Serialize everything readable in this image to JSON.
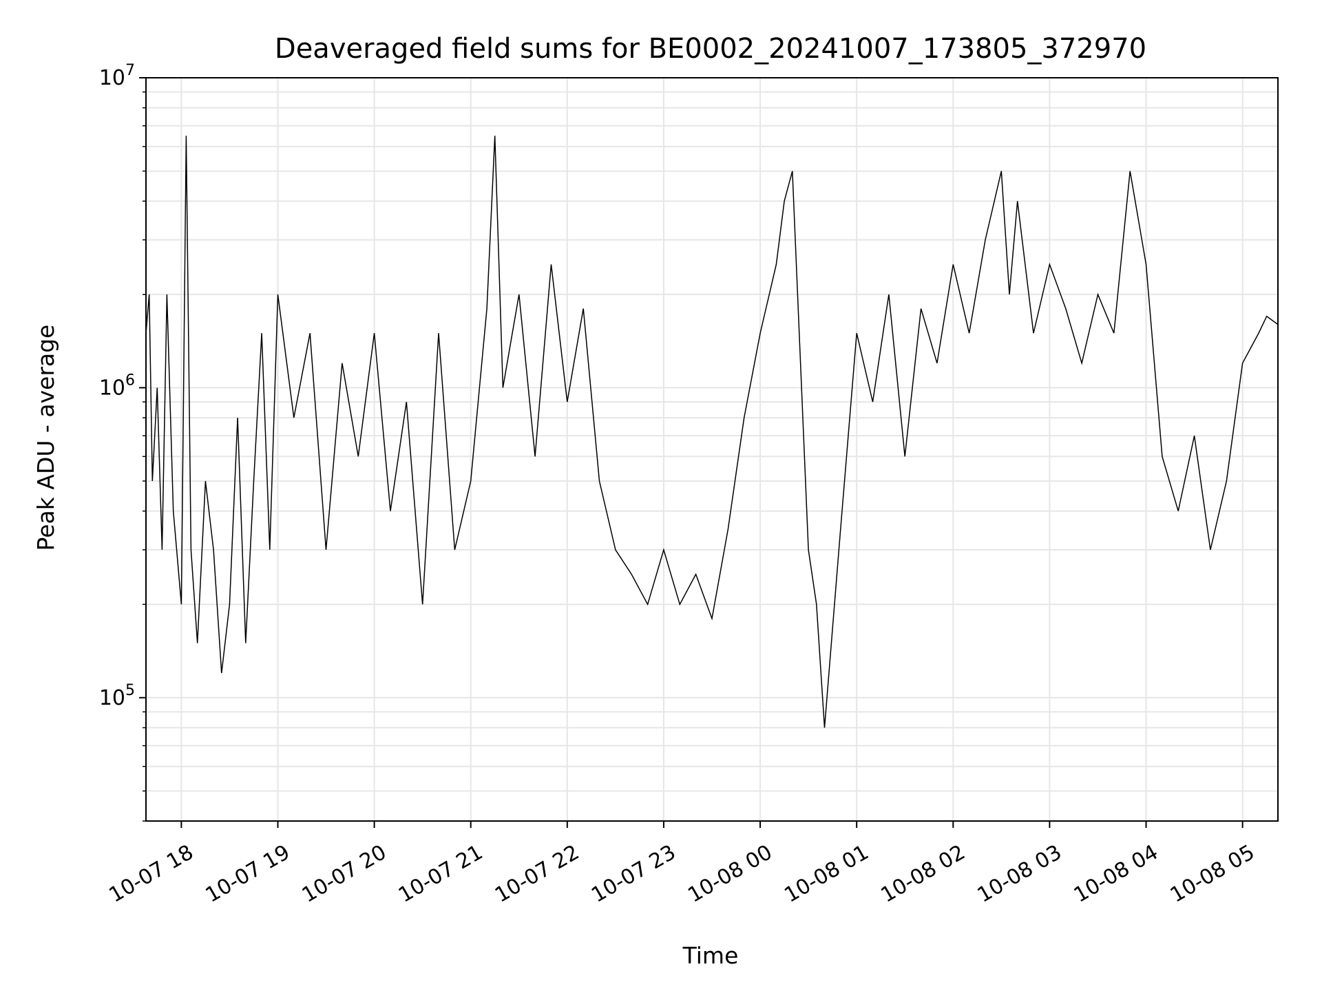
{
  "chart_data": {
    "type": "line",
    "title": "Deaveraged field sums for BE0002_20241007_173805_372970",
    "xlabel": "Time",
    "ylabel": "Peak ADU - average",
    "yscale": "log",
    "ylim": [
      40000,
      10000000
    ],
    "xlim": [
      "2024-10-07 17:38",
      "2024-10-08 05:22"
    ],
    "grid": true,
    "line_color": "#000000",
    "x_ticks": [
      {
        "value": "2024-10-07 18:00",
        "label": "10-07 18"
      },
      {
        "value": "2024-10-07 19:00",
        "label": "10-07 19"
      },
      {
        "value": "2024-10-07 20:00",
        "label": "10-07 20"
      },
      {
        "value": "2024-10-07 21:00",
        "label": "10-07 21"
      },
      {
        "value": "2024-10-07 22:00",
        "label": "10-07 22"
      },
      {
        "value": "2024-10-07 23:00",
        "label": "10-07 23"
      },
      {
        "value": "2024-10-08 00:00",
        "label": "10-08 00"
      },
      {
        "value": "2024-10-08 01:00",
        "label": "10-08 01"
      },
      {
        "value": "2024-10-08 02:00",
        "label": "10-08 02"
      },
      {
        "value": "2024-10-08 03:00",
        "label": "10-08 03"
      },
      {
        "value": "2024-10-08 04:00",
        "label": "10-08 04"
      },
      {
        "value": "2024-10-08 05:00",
        "label": "10-08 05"
      }
    ],
    "y_ticks": [
      {
        "value": 100000,
        "base": "10",
        "exp": "5"
      },
      {
        "value": 1000000,
        "base": "10",
        "exp": "6"
      },
      {
        "value": 10000000,
        "base": "10",
        "exp": "7"
      }
    ],
    "series": [
      {
        "x": [
          "2024-10-07 17:38",
          "2024-10-07 17:40",
          "2024-10-07 17:42",
          "2024-10-07 17:45",
          "2024-10-07 17:48",
          "2024-10-07 17:51",
          "2024-10-07 17:55",
          "2024-10-07 18:00",
          "2024-10-07 18:03",
          "2024-10-07 18:06",
          "2024-10-07 18:10",
          "2024-10-07 18:15",
          "2024-10-07 18:20",
          "2024-10-07 18:25",
          "2024-10-07 18:30",
          "2024-10-07 18:35",
          "2024-10-07 18:40",
          "2024-10-07 18:45",
          "2024-10-07 18:50",
          "2024-10-07 18:55",
          "2024-10-07 19:00",
          "2024-10-07 19:10",
          "2024-10-07 19:20",
          "2024-10-07 19:30",
          "2024-10-07 19:40",
          "2024-10-07 19:50",
          "2024-10-07 20:00",
          "2024-10-07 20:10",
          "2024-10-07 20:20",
          "2024-10-07 20:30",
          "2024-10-07 20:40",
          "2024-10-07 20:50",
          "2024-10-07 21:00",
          "2024-10-07 21:10",
          "2024-10-07 21:15",
          "2024-10-07 21:20",
          "2024-10-07 21:30",
          "2024-10-07 21:40",
          "2024-10-07 21:50",
          "2024-10-07 22:00",
          "2024-10-07 22:10",
          "2024-10-07 22:20",
          "2024-10-07 22:30",
          "2024-10-07 22:40",
          "2024-10-07 22:50",
          "2024-10-07 23:00",
          "2024-10-07 23:10",
          "2024-10-07 23:20",
          "2024-10-07 23:30",
          "2024-10-07 23:40",
          "2024-10-07 23:50",
          "2024-10-08 00:00",
          "2024-10-08 00:10",
          "2024-10-08 00:15",
          "2024-10-08 00:20",
          "2024-10-08 00:30",
          "2024-10-08 00:35",
          "2024-10-08 00:40",
          "2024-10-08 00:50",
          "2024-10-08 01:00",
          "2024-10-08 01:10",
          "2024-10-08 01:20",
          "2024-10-08 01:30",
          "2024-10-08 01:40",
          "2024-10-08 01:50",
          "2024-10-08 02:00",
          "2024-10-08 02:10",
          "2024-10-08 02:20",
          "2024-10-08 02:30",
          "2024-10-08 02:35",
          "2024-10-08 02:40",
          "2024-10-08 02:50",
          "2024-10-08 03:00",
          "2024-10-08 03:10",
          "2024-10-08 03:20",
          "2024-10-08 03:30",
          "2024-10-08 03:40",
          "2024-10-08 03:50",
          "2024-10-08 04:00",
          "2024-10-08 04:10",
          "2024-10-08 04:20",
          "2024-10-08 04:30",
          "2024-10-08 04:40",
          "2024-10-08 04:50",
          "2024-10-08 05:00",
          "2024-10-08 05:10",
          "2024-10-08 05:15",
          "2024-10-08 05:22"
        ],
        "y": [
          1500000,
          2000000,
          500000,
          1000000,
          300000,
          2000000,
          400000,
          200000,
          6500000,
          300000,
          150000,
          500000,
          300000,
          120000,
          200000,
          800000,
          150000,
          500000,
          1500000,
          300000,
          2000000,
          800000,
          1500000,
          300000,
          1200000,
          600000,
          1500000,
          400000,
          900000,
          200000,
          1500000,
          300000,
          500000,
          1800000,
          6500000,
          1000000,
          2000000,
          600000,
          2500000,
          900000,
          1800000,
          500000,
          300000,
          250000,
          200000,
          300000,
          200000,
          250000,
          180000,
          350000,
          800000,
          1500000,
          2500000,
          4000000,
          5000000,
          300000,
          200000,
          80000,
          350000,
          1500000,
          900000,
          2000000,
          600000,
          1800000,
          1200000,
          2500000,
          1500000,
          3000000,
          5000000,
          2000000,
          4000000,
          1500000,
          2500000,
          1800000,
          1200000,
          2000000,
          1500000,
          5000000,
          2500000,
          600000,
          400000,
          700000,
          300000,
          500000,
          1200000,
          1500000,
          1700000,
          1600000
        ]
      }
    ]
  }
}
